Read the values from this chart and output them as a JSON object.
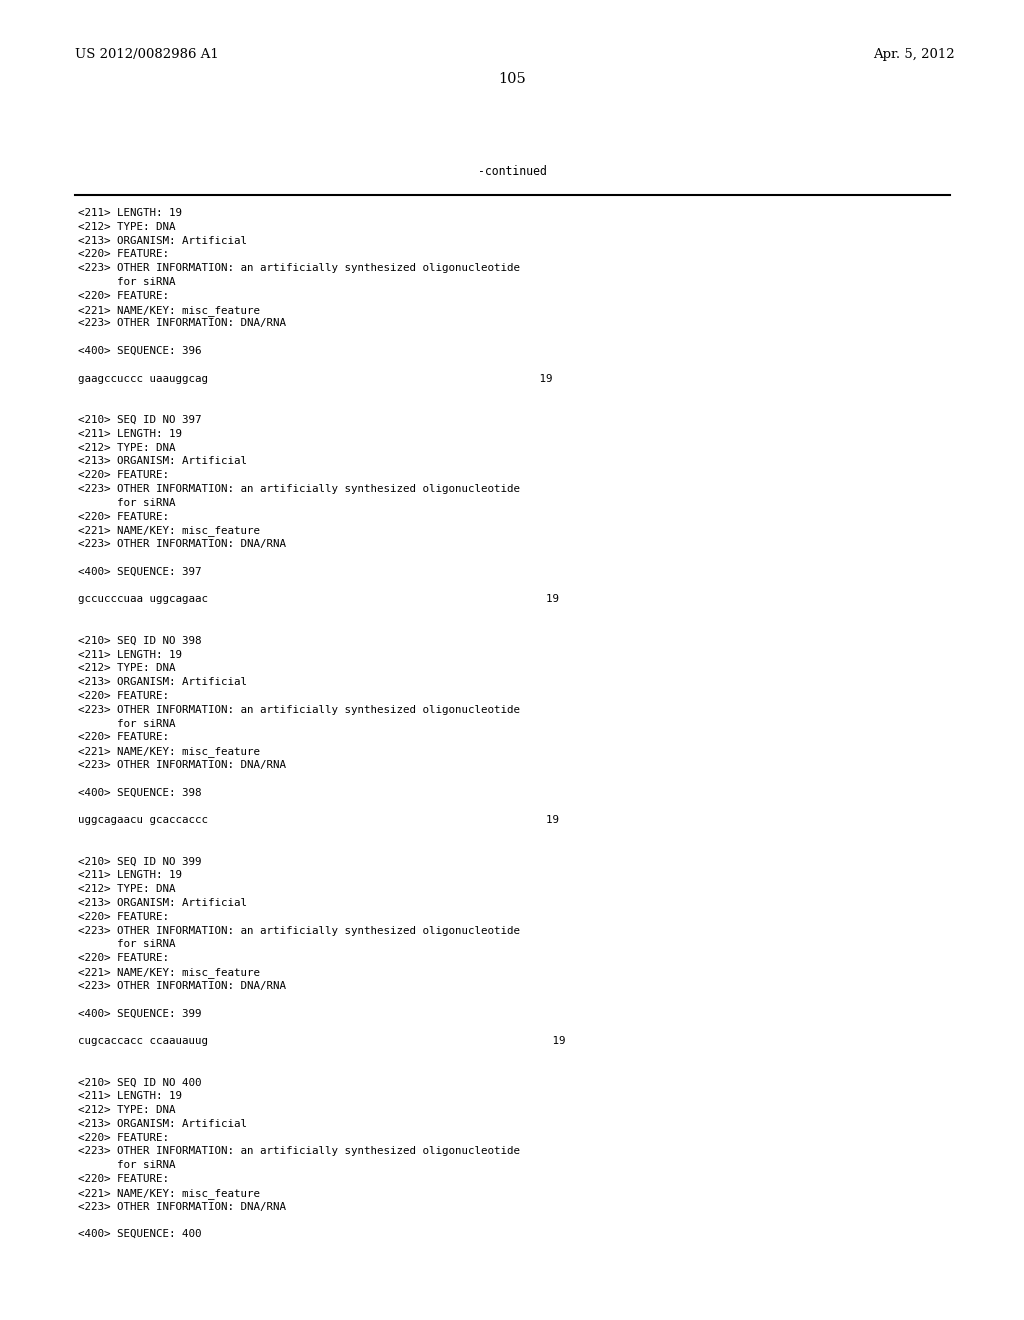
{
  "background_color": "#ffffff",
  "header_left": "US 2012/0082986 A1",
  "header_right": "Apr. 5, 2012",
  "page_number": "105",
  "continued_text": "-continued",
  "mono_font_size": 7.8,
  "header_font_size": 9.5,
  "page_num_font_size": 10.5,
  "content": [
    "<211> LENGTH: 19",
    "<212> TYPE: DNA",
    "<213> ORGANISM: Artificial",
    "<220> FEATURE:",
    "<223> OTHER INFORMATION: an artificially synthesized oligonucleotide",
    "      for siRNA",
    "<220> FEATURE:",
    "<221> NAME/KEY: misc_feature",
    "<223> OTHER INFORMATION: DNA/RNA",
    "",
    "<400> SEQUENCE: 396",
    "",
    "gaagccuccc uaauggcag                                                   19",
    "",
    "",
    "<210> SEQ ID NO 397",
    "<211> LENGTH: 19",
    "<212> TYPE: DNA",
    "<213> ORGANISM: Artificial",
    "<220> FEATURE:",
    "<223> OTHER INFORMATION: an artificially synthesized oligonucleotide",
    "      for siRNA",
    "<220> FEATURE:",
    "<221> NAME/KEY: misc_feature",
    "<223> OTHER INFORMATION: DNA/RNA",
    "",
    "<400> SEQUENCE: 397",
    "",
    "gccucccuaa uggcagaac                                                    19",
    "",
    "",
    "<210> SEQ ID NO 398",
    "<211> LENGTH: 19",
    "<212> TYPE: DNA",
    "<213> ORGANISM: Artificial",
    "<220> FEATURE:",
    "<223> OTHER INFORMATION: an artificially synthesized oligonucleotide",
    "      for siRNA",
    "<220> FEATURE:",
    "<221> NAME/KEY: misc_feature",
    "<223> OTHER INFORMATION: DNA/RNA",
    "",
    "<400> SEQUENCE: 398",
    "",
    "uggcagaacu gcaccaccc                                                    19",
    "",
    "",
    "<210> SEQ ID NO 399",
    "<211> LENGTH: 19",
    "<212> TYPE: DNA",
    "<213> ORGANISM: Artificial",
    "<220> FEATURE:",
    "<223> OTHER INFORMATION: an artificially synthesized oligonucleotide",
    "      for siRNA",
    "<220> FEATURE:",
    "<221> NAME/KEY: misc_feature",
    "<223> OTHER INFORMATION: DNA/RNA",
    "",
    "<400> SEQUENCE: 399",
    "",
    "cugcaccacc ccaauauug                                                     19",
    "",
    "",
    "<210> SEQ ID NO 400",
    "<211> LENGTH: 19",
    "<212> TYPE: DNA",
    "<213> ORGANISM: Artificial",
    "<220> FEATURE:",
    "<223> OTHER INFORMATION: an artificially synthesized oligonucleotide",
    "      for siRNA",
    "<220> FEATURE:",
    "<221> NAME/KEY: misc_feature",
    "<223> OTHER INFORMATION: DNA/RNA",
    "",
    "<400> SEQUENCE: 400"
  ]
}
